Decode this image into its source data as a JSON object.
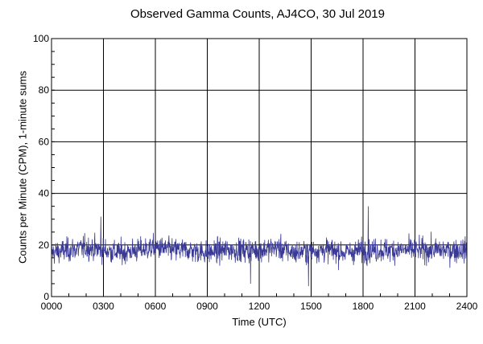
{
  "chart_data": {
    "type": "line",
    "title": "Observed Gamma Counts, AJ4CO, 30 Jul 2019",
    "xlabel": "Time (UTC)",
    "ylabel": "Counts per Minute (CPM), 1-minute sums",
    "x_ticks": [
      "0000",
      "0300",
      "0600",
      "0900",
      "1200",
      "1500",
      "1800",
      "2100",
      "2400"
    ],
    "y_ticks": [
      0,
      20,
      40,
      60,
      80,
      100
    ],
    "xlim": [
      0,
      24
    ],
    "ylim": [
      0,
      100
    ],
    "grid": true,
    "series": [
      {
        "color": "#3a3a96",
        "sampling": "1-minute sums",
        "hourly_values": [
          17,
          18,
          19,
          18,
          17,
          18,
          19,
          18,
          18,
          17,
          18,
          18,
          18,
          19,
          17,
          18,
          18,
          17,
          18,
          18,
          18,
          18,
          18,
          18,
          18
        ],
        "typical_range": [
          8,
          28
        ],
        "peaks": [
          {
            "x": 2.85,
            "y": 31
          },
          {
            "x": 18.3,
            "y": 35
          },
          {
            "x": 11.5,
            "y": 5
          },
          {
            "x": 14.85,
            "y": 4
          }
        ]
      }
    ]
  }
}
